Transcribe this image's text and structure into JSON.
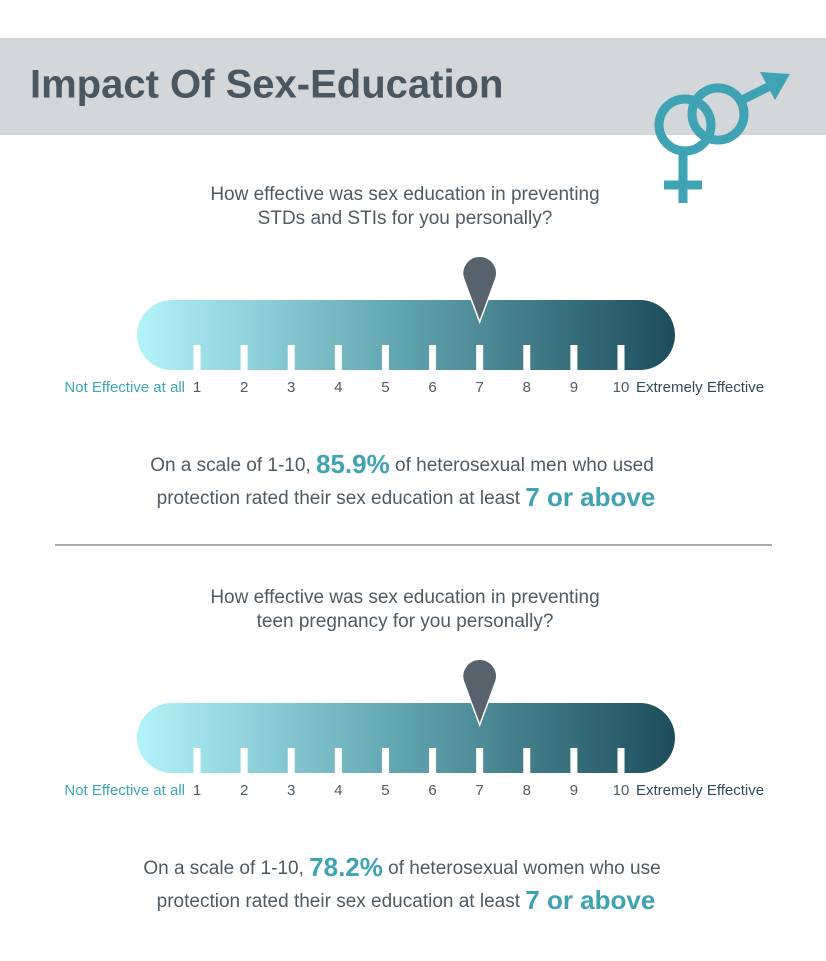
{
  "header": {
    "title": "Impact Of Sex-Education"
  },
  "sections": [
    {
      "question": [
        "How effective was sex education in preventing",
        "STDs and STIs for you personally?"
      ],
      "scale": {
        "min_label": "Not Effective at all",
        "max_label": "Extremely Effective",
        "ticks": [
          1,
          2,
          3,
          4,
          5,
          6,
          7,
          8,
          9,
          10
        ],
        "pointer": 7
      },
      "summary": [
        [
          "On a scale of 1-10, ",
          "85.9%",
          " of heterosexual men who used"
        ],
        [
          "protection rated their sex education at least ",
          "7 or above"
        ]
      ]
    },
    {
      "question": [
        "How effective was sex education in preventing",
        "teen pregnancy for you personally?"
      ],
      "scale": {
        "min_label": "Not Effective at all",
        "max_label": "Extremely Effective",
        "ticks": [
          1,
          2,
          3,
          4,
          5,
          6,
          7,
          8,
          9,
          10
        ],
        "pointer": 7
      },
      "summary": [
        [
          "On a scale of 1-10, ",
          "78.2%",
          " of heterosexual women who use"
        ],
        [
          "protection rated their sex education at least ",
          "7 or above"
        ]
      ]
    }
  ]
}
